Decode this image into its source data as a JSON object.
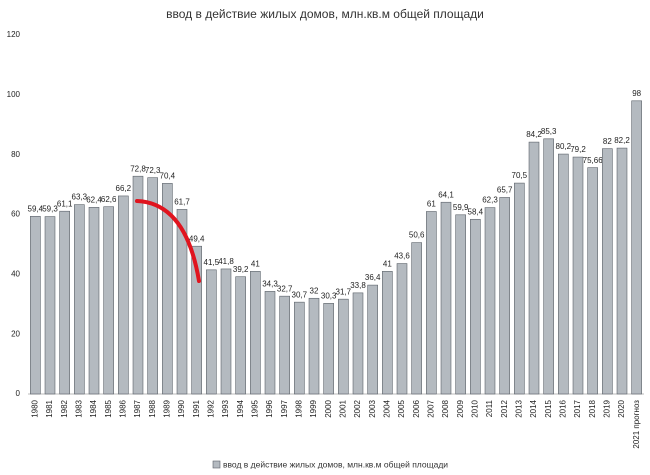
{
  "chart_data": {
    "type": "bar",
    "title": "ввод в действие жилых домов, млн.кв.м общей площади",
    "categories": [
      "1980",
      "1981",
      "1982",
      "1983",
      "1984",
      "1985",
      "1986",
      "1987",
      "1988",
      "1989",
      "1990",
      "1991",
      "1992",
      "1993",
      "1994",
      "1995",
      "1996",
      "1997",
      "1998",
      "1999",
      "2000",
      "2001",
      "2002",
      "2003",
      "2004",
      "2005",
      "2006",
      "2007",
      "2008",
      "2009",
      "2010",
      "2011",
      "2012",
      "2013",
      "2014",
      "2015",
      "2016",
      "2017",
      "2018",
      "2019",
      "2020",
      "2021 прогноз"
    ],
    "series": [
      {
        "name": "ввод в действие жилых домов, млн.кв.м общей площади",
        "color": "#b4bac0",
        "values": [
          59.4,
          59.3,
          61.1,
          63.3,
          62.4,
          62.6,
          66.2,
          72.8,
          72.3,
          70.4,
          61.7,
          49.4,
          41.5,
          41.8,
          39.2,
          41,
          34.3,
          32.7,
          30.7,
          32,
          30.3,
          31.7,
          33.8,
          36.4,
          41,
          43.6,
          50.6,
          61,
          64.1,
          59.9,
          58.4,
          62.3,
          65.7,
          70.5,
          84.2,
          85.3,
          80.2,
          79.2,
          75.66,
          82,
          82.2,
          98
        ],
        "value_labels": [
          "59,4",
          "59,3",
          "61,1",
          "63,3",
          "62,4",
          "62,6",
          "66,2",
          "72,8",
          "72,3",
          "70,4",
          "61,7",
          "49,4",
          "41,5",
          "41,8",
          "39,2",
          "41",
          "34,3",
          "32,7",
          "30,7",
          "32",
          "30,3",
          "31,7",
          "33,8",
          "36,4",
          "41",
          "43,6",
          "50,6",
          "61",
          "64,1",
          "59,9",
          "58,4",
          "62,3",
          "65,7",
          "70,5",
          "84,2",
          "85,3",
          "80,2",
          "79,2",
          "75,66",
          "82",
          "82,2",
          "98"
        ]
      }
    ],
    "ylim": [
      0,
      120
    ],
    "yticks": [
      0,
      20,
      40,
      60,
      80,
      100,
      120
    ],
    "grid": false,
    "legend": "bottom"
  }
}
